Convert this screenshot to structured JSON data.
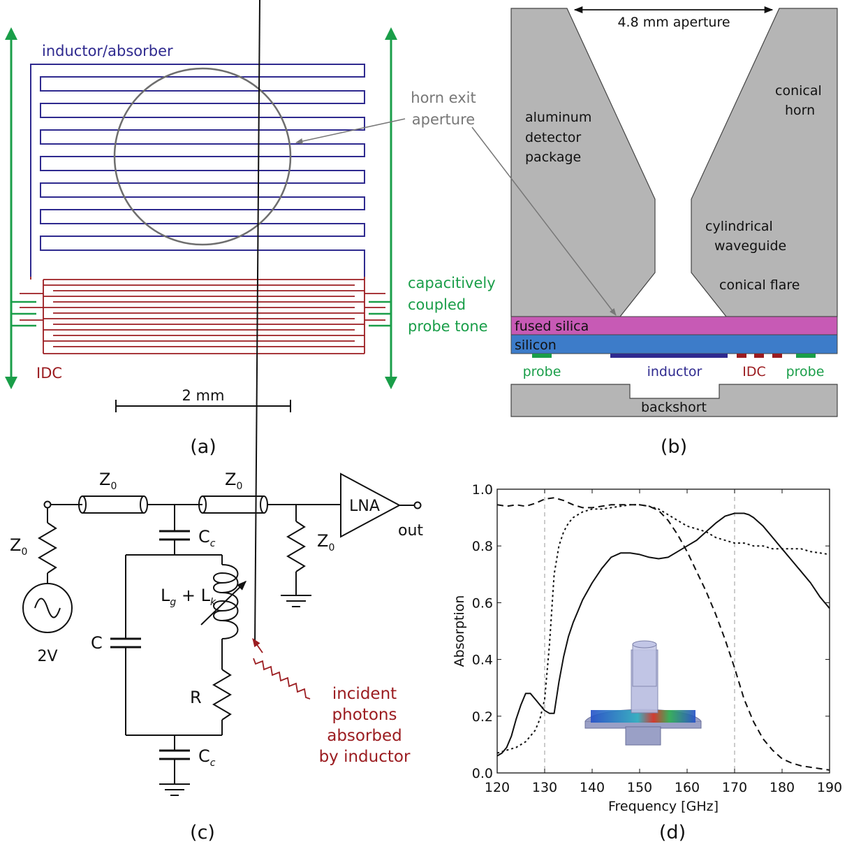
{
  "colors": {
    "blue": "#2f2a8f",
    "red": "#9b1c20",
    "green": "#1a9e49",
    "gray": "#7a7a7a",
    "metal": "#b5b5b5",
    "fused_silica": "#c75ab5",
    "silicon": "#3d7cc9",
    "black": "#111111"
  },
  "panel_a": {
    "inductor_label": "inductor/absorber",
    "horn_label_1": "horn exit",
    "horn_label_2": "aperture",
    "probe_label_1": "capacitively",
    "probe_label_2": "coupled",
    "probe_label_3": "probe tone",
    "idc_label": "IDC",
    "scale_label": "2 mm",
    "caption": "(a)"
  },
  "panel_b": {
    "aperture_label": "4.8 mm aperture",
    "package_1": "aluminum",
    "package_2": "detector",
    "package_3": "package",
    "horn_1": "conical",
    "horn_2": "horn",
    "waveguide_1": "cylindrical",
    "waveguide_2": "waveguide",
    "flare": "conical flare",
    "fused_silica": "fused silica",
    "silicon": "silicon",
    "probe_left": "probe",
    "inductor": "inductor",
    "idc": "IDC",
    "probe_right": "probe",
    "backshort": "backshort",
    "caption": "(b)"
  },
  "panel_c": {
    "z0_main": "Z",
    "z0_sub": "0",
    "cc_main": "C",
    "cc_sub": "c",
    "lna": "LNA",
    "out": "out",
    "source": "2V",
    "c": "C",
    "r": "R",
    "lg_main": "L",
    "lg_sub": "g",
    "plus": " + L",
    "lk_sub": "k",
    "photon_1": "incident",
    "photon_2": "photons",
    "photon_3": "absorbed",
    "photon_4": "by inductor",
    "caption": "(c)"
  },
  "chart_data": {
    "type": "line",
    "xlabel": "Frequency [GHz]",
    "ylabel": "Absorption",
    "xlim": [
      120,
      190
    ],
    "ylim": [
      0.0,
      1.0
    ],
    "x_ticks": [
      "120",
      "130",
      "140",
      "150",
      "160",
      "170",
      "180",
      "190"
    ],
    "y_ticks": [
      "0.0",
      "0.2",
      "0.4",
      "0.6",
      "0.8",
      "1.0"
    ],
    "vlines": [
      130,
      170
    ],
    "series": [
      {
        "style": "solid",
        "x": [
          120,
          121,
          122,
          123,
          124,
          125,
          126,
          127,
          128,
          129,
          130,
          131,
          132,
          133,
          134,
          135,
          136,
          137,
          138,
          140,
          142,
          144,
          146,
          148,
          150,
          152,
          154,
          156,
          158,
          160,
          162,
          164,
          166,
          168,
          170,
          171,
          172,
          173,
          174,
          176,
          178,
          180,
          182,
          184,
          186,
          188,
          190
        ],
        "y": [
          0.06,
          0.07,
          0.09,
          0.13,
          0.19,
          0.24,
          0.28,
          0.28,
          0.26,
          0.24,
          0.22,
          0.21,
          0.21,
          0.32,
          0.41,
          0.48,
          0.53,
          0.57,
          0.61,
          0.67,
          0.72,
          0.76,
          0.775,
          0.775,
          0.77,
          0.76,
          0.755,
          0.76,
          0.78,
          0.8,
          0.82,
          0.85,
          0.88,
          0.905,
          0.915,
          0.915,
          0.915,
          0.91,
          0.9,
          0.87,
          0.83,
          0.79,
          0.75,
          0.71,
          0.67,
          0.62,
          0.58
        ]
      },
      {
        "style": "dotted",
        "x": [
          120,
          122,
          124,
          126,
          128,
          129,
          130,
          131,
          132,
          133,
          134,
          135,
          136,
          137,
          138,
          140,
          142,
          144,
          146,
          148,
          150,
          152,
          154,
          156,
          158,
          160,
          162,
          164,
          166,
          168,
          170,
          172,
          174,
          176,
          178,
          180,
          182,
          184,
          186,
          188,
          190
        ],
        "y": [
          0.07,
          0.08,
          0.09,
          0.11,
          0.15,
          0.19,
          0.26,
          0.45,
          0.7,
          0.8,
          0.85,
          0.88,
          0.9,
          0.91,
          0.92,
          0.93,
          0.93,
          0.935,
          0.94,
          0.945,
          0.945,
          0.94,
          0.93,
          0.91,
          0.89,
          0.87,
          0.86,
          0.85,
          0.83,
          0.82,
          0.81,
          0.81,
          0.8,
          0.8,
          0.79,
          0.79,
          0.79,
          0.79,
          0.78,
          0.775,
          0.77
        ]
      },
      {
        "style": "dashed",
        "x": [
          120,
          122,
          124,
          126,
          128,
          130,
          132,
          134,
          136,
          138,
          140,
          142,
          144,
          146,
          148,
          150,
          152,
          154,
          156,
          158,
          160,
          162,
          164,
          166,
          168,
          170,
          172,
          174,
          176,
          178,
          180,
          182,
          184,
          186,
          188,
          190
        ],
        "y": [
          0.945,
          0.94,
          0.945,
          0.94,
          0.95,
          0.965,
          0.97,
          0.96,
          0.945,
          0.935,
          0.935,
          0.94,
          0.945,
          0.945,
          0.945,
          0.945,
          0.94,
          0.925,
          0.89,
          0.84,
          0.78,
          0.71,
          0.64,
          0.56,
          0.47,
          0.37,
          0.26,
          0.18,
          0.12,
          0.08,
          0.05,
          0.035,
          0.025,
          0.02,
          0.015,
          0.01
        ]
      }
    ],
    "caption": "(d)"
  }
}
